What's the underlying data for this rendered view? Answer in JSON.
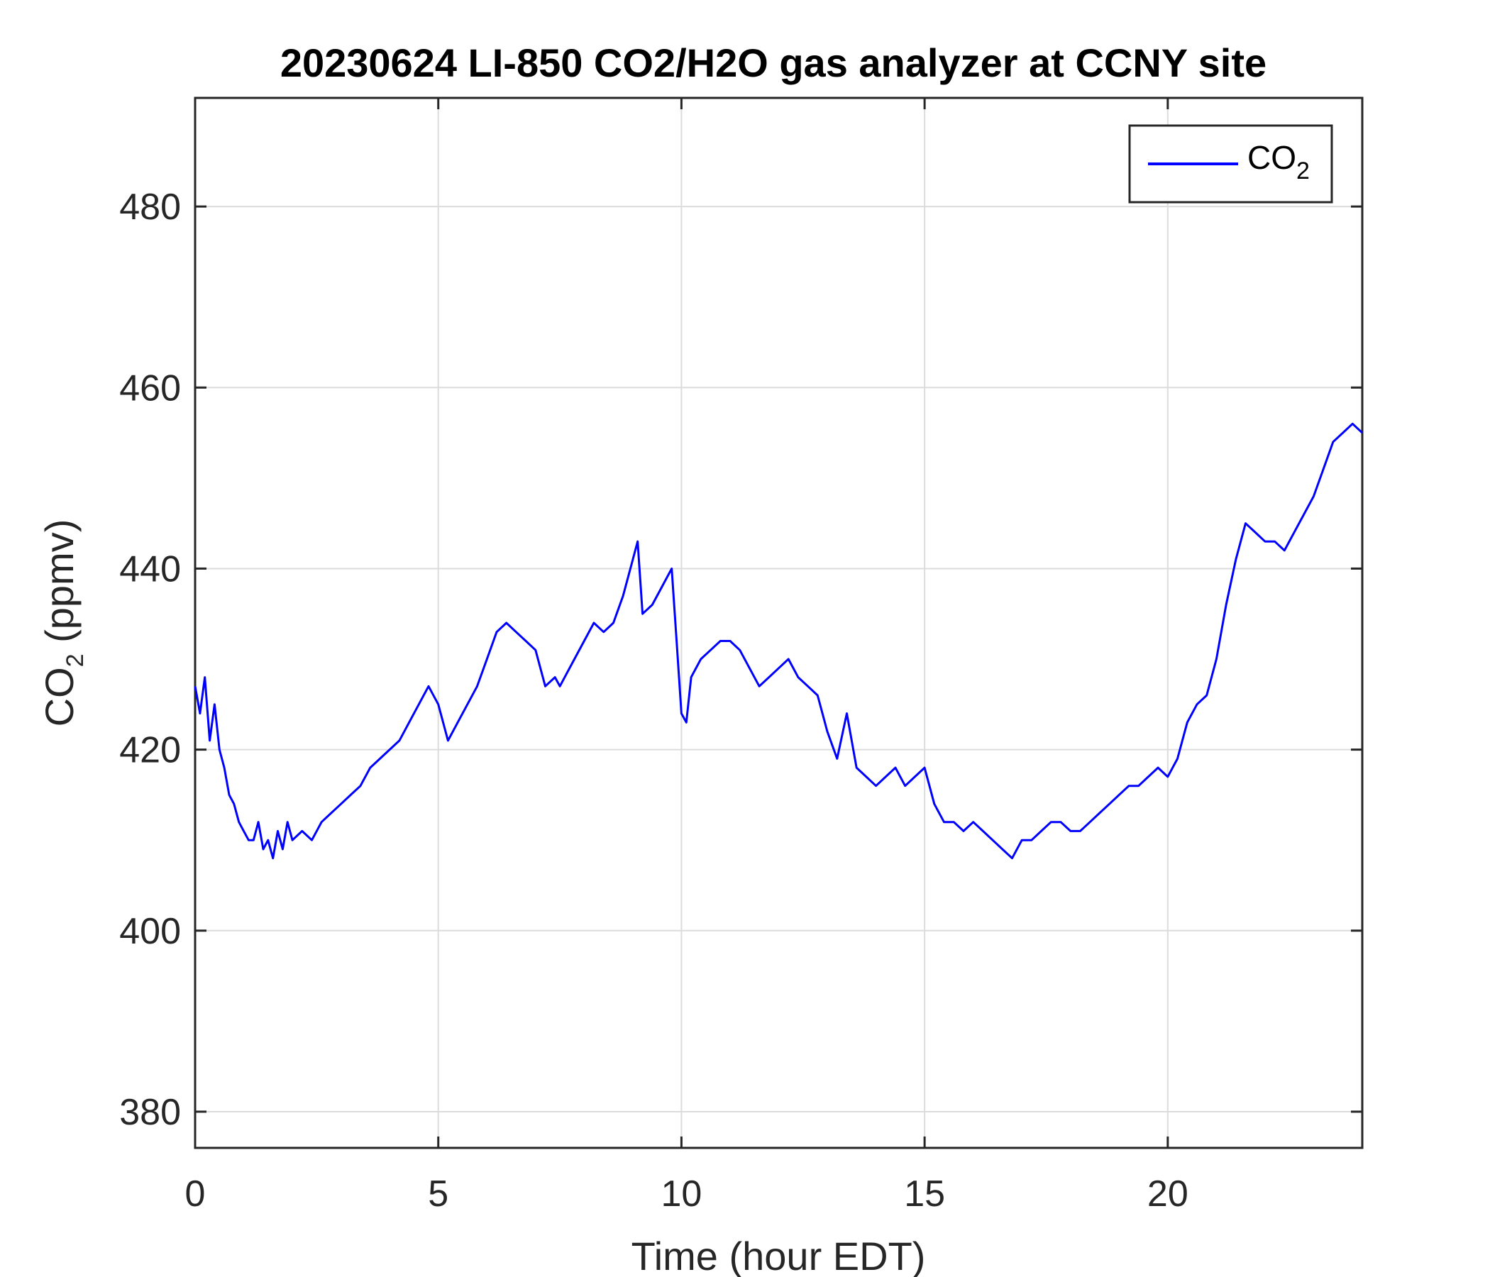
{
  "chart_data": {
    "type": "line",
    "title": "20230624 LI-850 CO2/H2O gas analyzer at CCNY site",
    "xlabel": "Time (hour EDT)",
    "ylabel": {
      "main": "CO",
      "sub": "2",
      "rest": " (ppmv)"
    },
    "xlim": [
      0,
      24
    ],
    "ylim": [
      376,
      492
    ],
    "xticks": [
      0,
      5,
      10,
      15,
      20
    ],
    "yticks": [
      380,
      400,
      420,
      440,
      460,
      480
    ],
    "grid": true,
    "legend_position": "top-right",
    "series": [
      {
        "name": {
          "main": "CO",
          "sub": "2"
        },
        "color": "#0000ff",
        "x": [
          0,
          0.1,
          0.2,
          0.3,
          0.4,
          0.5,
          0.6,
          0.7,
          0.8,
          0.9,
          1.0,
          1.1,
          1.2,
          1.3,
          1.4,
          1.5,
          1.6,
          1.7,
          1.8,
          1.9,
          2.0,
          2.2,
          2.4,
          2.6,
          2.8,
          3.0,
          3.2,
          3.4,
          3.6,
          3.8,
          4.0,
          4.2,
          4.4,
          4.6,
          4.8,
          5.0,
          5.2,
          5.4,
          5.6,
          5.8,
          6.0,
          6.2,
          6.4,
          6.6,
          6.8,
          7.0,
          7.2,
          7.4,
          7.5,
          7.6,
          7.8,
          8.0,
          8.2,
          8.4,
          8.6,
          8.8,
          9.0,
          9.1,
          9.2,
          9.4,
          9.6,
          9.8,
          9.9,
          10.0,
          10.1,
          10.2,
          10.4,
          10.6,
          10.8,
          11.0,
          11.2,
          11.4,
          11.6,
          11.8,
          12.0,
          12.2,
          12.4,
          12.6,
          12.8,
          13.0,
          13.2,
          13.4,
          13.6,
          13.8,
          14.0,
          14.2,
          14.4,
          14.6,
          14.8,
          15.0,
          15.2,
          15.4,
          15.6,
          15.8,
          16.0,
          16.2,
          16.4,
          16.6,
          16.8,
          17.0,
          17.2,
          17.4,
          17.6,
          17.8,
          18.0,
          18.2,
          18.4,
          18.6,
          18.8,
          19.0,
          19.2,
          19.4,
          19.6,
          19.8,
          20.0,
          20.2,
          20.4,
          20.6,
          20.8,
          21.0,
          21.2,
          21.4,
          21.6,
          21.8,
          22.0,
          22.2,
          22.4,
          22.6,
          22.8,
          23.0,
          23.2,
          23.4,
          23.6,
          23.8,
          24.0
        ],
        "y": [
          427,
          424,
          428,
          421,
          425,
          420,
          418,
          415,
          414,
          412,
          411,
          410,
          410,
          412,
          409,
          410,
          408,
          411,
          409,
          412,
          410,
          411,
          410,
          412,
          413,
          414,
          415,
          416,
          418,
          419,
          420,
          421,
          423,
          425,
          427,
          425,
          421,
          423,
          425,
          427,
          430,
          433,
          434,
          433,
          432,
          431,
          427,
          428,
          427,
          428,
          430,
          432,
          434,
          433,
          434,
          437,
          441,
          443,
          435,
          436,
          438,
          440,
          432,
          424,
          423,
          428,
          430,
          431,
          432,
          432,
          431,
          429,
          427,
          428,
          429,
          430,
          428,
          427,
          426,
          422,
          419,
          424,
          418,
          417,
          416,
          417,
          418,
          416,
          417,
          418,
          414,
          412,
          412,
          411,
          412,
          411,
          410,
          409,
          408,
          410,
          410,
          411,
          412,
          412,
          411,
          411,
          412,
          413,
          414,
          415,
          416,
          416,
          417,
          418,
          417,
          419,
          423,
          425,
          426,
          430,
          436,
          441,
          445,
          444,
          443,
          443,
          442,
          444,
          446,
          448,
          451,
          454,
          455,
          456,
          455
        ]
      }
    ]
  }
}
